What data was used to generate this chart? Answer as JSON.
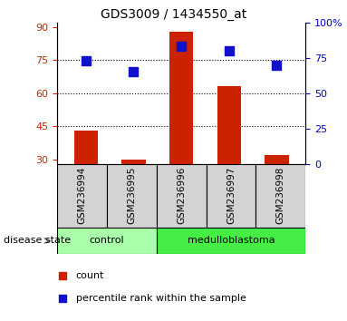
{
  "title": "GDS3009 / 1434550_at",
  "samples": [
    "GSM236994",
    "GSM236995",
    "GSM236996",
    "GSM236997",
    "GSM236998"
  ],
  "counts": [
    43,
    30,
    88,
    63,
    32
  ],
  "percentile_ranks": [
    73,
    65,
    83,
    80,
    70
  ],
  "ylim_left": [
    28,
    92
  ],
  "ylim_right": [
    0,
    100
  ],
  "left_ticks": [
    30,
    45,
    60,
    75,
    90
  ],
  "right_ticks": [
    0,
    25,
    50,
    75,
    100
  ],
  "right_tick_labels": [
    "0",
    "25",
    "50",
    "75",
    "100%"
  ],
  "bar_color": "#cc2200",
  "dot_color": "#1111cc",
  "control_color": "#aaffaa",
  "medulloblastoma_color": "#44ee44",
  "axis_color_left": "#cc2200",
  "axis_color_right": "#0000cc",
  "grid_lines_at": [
    45,
    60,
    75
  ],
  "bar_width": 0.5,
  "dot_size": 50,
  "fig_width": 3.83,
  "fig_height": 3.54,
  "dpi": 100,
  "groups_info": [
    {
      "label": "control",
      "start": 0,
      "end": 2
    },
    {
      "label": "medulloblastoma",
      "start": 2,
      "end": 5
    }
  ]
}
